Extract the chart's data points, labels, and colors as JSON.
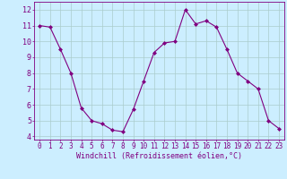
{
  "x": [
    0,
    1,
    2,
    3,
    4,
    5,
    6,
    7,
    8,
    9,
    10,
    11,
    12,
    13,
    14,
    15,
    16,
    17,
    18,
    19,
    20,
    21,
    22,
    23
  ],
  "y": [
    11.0,
    10.9,
    9.5,
    8.0,
    5.8,
    5.0,
    4.8,
    4.4,
    4.3,
    5.7,
    7.5,
    9.3,
    9.9,
    10.0,
    12.0,
    11.1,
    11.3,
    10.9,
    9.5,
    8.0,
    7.5,
    7.0,
    5.0,
    4.5
  ],
  "line_color": "#800080",
  "marker": "D",
  "marker_size": 2,
  "bg_color": "#cceeff",
  "grid_color": "#aacccc",
  "xlabel": "Windchill (Refroidissement éolien,°C)",
  "ylabel_ticks": [
    4,
    5,
    6,
    7,
    8,
    9,
    10,
    11,
    12
  ],
  "xtick_labels": [
    "0",
    "1",
    "2",
    "3",
    "4",
    "5",
    "6",
    "7",
    "8",
    "9",
    "10",
    "11",
    "12",
    "13",
    "14",
    "15",
    "16",
    "17",
    "18",
    "19",
    "20",
    "21",
    "22",
    "23"
  ],
  "xlim": [
    -0.5,
    23.5
  ],
  "ylim": [
    3.8,
    12.5
  ],
  "tick_color": "#800080",
  "label_color": "#800080",
  "spine_color": "#800080",
  "tick_fontsize": 5.5,
  "xlabel_fontsize": 6.0
}
